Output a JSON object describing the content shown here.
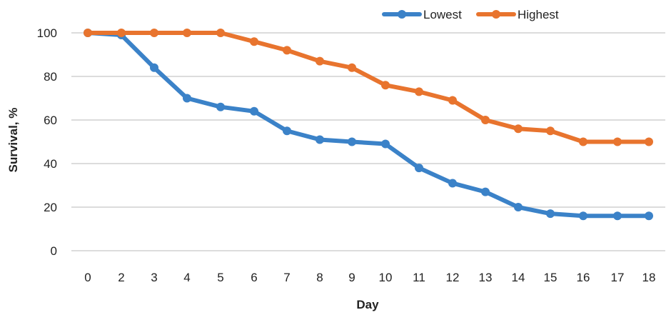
{
  "chart_data": {
    "type": "line",
    "title": "",
    "xlabel": "Day",
    "ylabel": "Survival, %",
    "categories": [
      "0",
      "2",
      "3",
      "4",
      "5",
      "6",
      "7",
      "8",
      "9",
      "10",
      "11",
      "12",
      "13",
      "14",
      "15",
      "16",
      "17",
      "18"
    ],
    "ylim": [
      0,
      100
    ],
    "yticks": [
      "0",
      "20",
      "40",
      "60",
      "80",
      "100"
    ],
    "grid": true,
    "legend_position": "top-right",
    "series": [
      {
        "name": "Lowest",
        "color": "#3b82c8",
        "values": [
          100,
          99,
          84,
          70,
          66,
          64,
          55,
          51,
          50,
          49,
          38,
          31,
          27,
          20,
          17,
          16,
          16,
          16
        ]
      },
      {
        "name": "Highest",
        "color": "#e8742e",
        "values": [
          100,
          100,
          100,
          100,
          100,
          96,
          92,
          87,
          84,
          76,
          73,
          69,
          60,
          56,
          55,
          50,
          50,
          50
        ]
      }
    ]
  }
}
